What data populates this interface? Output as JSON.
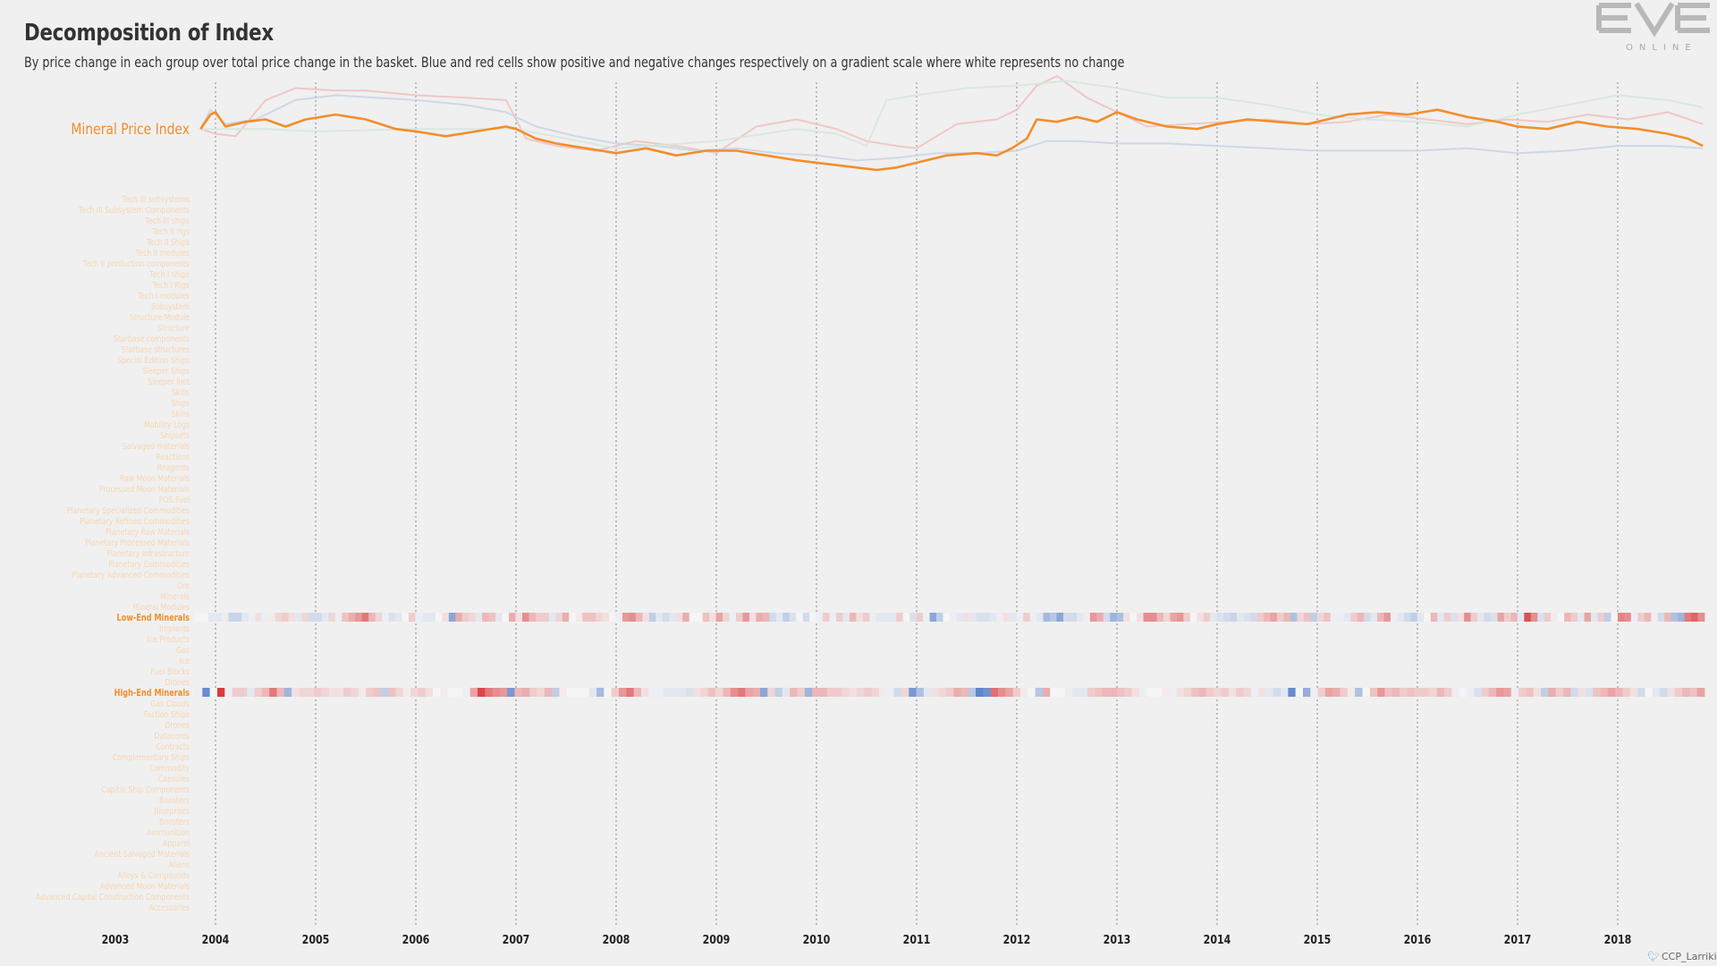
{
  "title": "Decomposition of Index",
  "subtitle": "By price change in each group over total price change in the basket. Blue and red cells show positive and negative changes respectively on a gradient scale where white represents no change",
  "logo": {
    "text": "EVE",
    "sub": "ONLINE"
  },
  "credit": "CCP_Larrikin",
  "colors": {
    "background": "#f0f0f0",
    "accent": "#f28e2b",
    "faded_label": "#f6d6b4",
    "positive": "#4472c4",
    "negative": "#d62728",
    "grid": "#888888"
  },
  "chart_data": {
    "type": "heatmap",
    "title": "Decomposition of Index",
    "x_axis": {
      "ticks": [
        "2003",
        "2004",
        "2005",
        "2006",
        "2007",
        "2008",
        "2009",
        "2010",
        "2011",
        "2012",
        "2013",
        "2014",
        "2015",
        "2016",
        "2017",
        "2018"
      ],
      "range": [
        2003,
        2018.95
      ]
    },
    "line_panel": {
      "type": "line",
      "highlighted_series": "Mineral Price Index",
      "series": [
        {
          "name": "Mineral Price Index",
          "color": "#f28e2b",
          "x": [
            2003.85,
            2003.95,
            2004.0,
            2004.1,
            2004.3,
            2004.5,
            2004.7,
            2004.9,
            2005.2,
            2005.5,
            2005.8,
            2006.0,
            2006.3,
            2006.6,
            2006.9,
            2007.0,
            2007.2,
            2007.4,
            2007.7,
            2008.0,
            2008.3,
            2008.6,
            2008.9,
            2009.2,
            2009.5,
            2009.8,
            2010.0,
            2010.2,
            2010.4,
            2010.6,
            2010.8,
            2011.0,
            2011.3,
            2011.6,
            2011.8,
            2011.95,
            2012.1,
            2012.2,
            2012.4,
            2012.6,
            2012.8,
            2013.0,
            2013.2,
            2013.5,
            2013.8,
            2014.0,
            2014.3,
            2014.6,
            2014.9,
            2015.1,
            2015.3,
            2015.6,
            2015.9,
            2016.2,
            2016.5,
            2016.8,
            2017.0,
            2017.3,
            2017.6,
            2017.9,
            2018.2,
            2018.5,
            2018.7,
            2018.85
          ],
          "values": [
            100,
            106,
            107,
            101,
            103,
            104,
            101,
            104,
            106,
            104,
            100,
            99,
            97,
            99,
            101,
            100,
            96,
            94,
            92,
            90,
            92,
            89,
            91,
            91,
            89,
            87,
            86,
            85,
            84,
            83,
            84,
            86,
            89,
            90,
            89,
            92,
            96,
            104,
            103,
            105,
            103,
            107,
            104,
            101,
            100,
            102,
            104,
            103,
            102,
            104,
            106,
            107,
            106,
            108,
            105,
            103,
            101,
            100,
            103,
            101,
            100,
            98,
            96,
            93
          ]
        },
        {
          "name": "Low-End Minerals",
          "color": "#f0c0c0",
          "x": [
            2003.85,
            2004.0,
            2004.2,
            2004.5,
            2004.8,
            2005.2,
            2005.5,
            2006.0,
            2006.5,
            2006.9,
            2007.1,
            2007.4,
            2007.8,
            2008.2,
            2008.6,
            2009.0,
            2009.4,
            2009.8,
            2010.2,
            2010.5,
            2010.8,
            2011.0,
            2011.4,
            2011.8,
            2012.0,
            2012.2,
            2012.4,
            2012.7,
            2013.0,
            2013.3,
            2013.7,
            2014.1,
            2014.5,
            2014.9,
            2015.3,
            2015.7,
            2016.1,
            2016.5,
            2016.9,
            2017.3,
            2017.7,
            2018.1,
            2018.5,
            2018.85
          ],
          "values": [
            100,
            98,
            97,
            112,
            117,
            116,
            116,
            114,
            113,
            112,
            96,
            93,
            91,
            95,
            93,
            90,
            101,
            104,
            100,
            95,
            93,
            92,
            102,
            104,
            108,
            118,
            122,
            113,
            107,
            101,
            102,
            103,
            104,
            102,
            103,
            106,
            104,
            102,
            104,
            103,
            106,
            104,
            107,
            102
          ]
        },
        {
          "name": "High-End Minerals",
          "color": "#c8d4e4",
          "x": [
            2003.85,
            2003.95,
            2004.1,
            2004.4,
            2004.8,
            2005.2,
            2005.6,
            2006.0,
            2006.5,
            2006.9,
            2007.2,
            2007.6,
            2008.0,
            2008.4,
            2008.8,
            2009.2,
            2009.6,
            2010.0,
            2010.4,
            2010.8,
            2011.2,
            2011.6,
            2012.0,
            2012.3,
            2012.6,
            2013.0,
            2013.5,
            2014.0,
            2014.5,
            2015.0,
            2015.5,
            2016.0,
            2016.5,
            2017.0,
            2017.5,
            2018.0,
            2018.5,
            2018.85
          ],
          "values": [
            100,
            108,
            102,
            104,
            112,
            114,
            113,
            112,
            110,
            107,
            101,
            97,
            94,
            93,
            91,
            92,
            90,
            89,
            87,
            88,
            90,
            90,
            91,
            95,
            95,
            94,
            94,
            93,
            92,
            91,
            91,
            91,
            92,
            90,
            91,
            93,
            93,
            92
          ]
        },
        {
          "name": "",
          "color": "#d6e6dc",
          "x": [
            2003.85,
            2004.5,
            2005.0,
            2006.0,
            2007.0,
            2008.0,
            2009.0,
            2009.8,
            2010.2,
            2010.5,
            2010.7,
            2011.0,
            2011.5,
            2012.0,
            2012.5,
            2013.0,
            2013.5,
            2014.0,
            2014.5,
            2015.0,
            2015.5,
            2016.0,
            2016.5,
            2017.0,
            2017.5,
            2018.0,
            2018.5,
            2018.85
          ],
          "values": [
            100,
            100,
            99,
            100,
            100,
            92,
            95,
            100,
            98,
            93,
            112,
            114,
            117,
            118,
            120,
            117,
            113,
            113,
            110,
            106,
            104,
            103,
            101,
            106,
            110,
            114,
            112,
            109
          ]
        }
      ]
    },
    "heatmap_rows": [
      "Tech III subsystems",
      "Tech III Subsystem Components",
      "Tech III ships",
      "Tech II rigs",
      "Tech II Ships",
      "Tech II modules",
      "Tech II production components",
      "Tech I ships",
      "Tech I Rigs",
      "Tech I modules",
      "Subsystem",
      "Structure Module",
      "Structure",
      "Starbase components",
      "Starbase structures",
      "Special Edition Ships",
      "Sleeper Ships",
      "Sleeper loot",
      "Skills",
      "Ships",
      "Skins",
      "Mobility Logs",
      "Shipsets",
      "Salvaged materials",
      "Reactions",
      "Reagents",
      "Raw Moon Materials",
      "Processed Moon Materials",
      "POS Fuel",
      "Planetary Specialized Commodities",
      "Planetary Refined Commodities",
      "Planetary Raw Materials",
      "Planetary Processed Materials",
      "Planetary Infrastructure",
      "Planetary Commodities",
      "Planetary Advanced Commodities",
      "Ore",
      "Minerals",
      "Mineral Modules",
      "Low-End Minerals",
      "Implants",
      "Ice Products",
      "Gas",
      "Ice",
      "Fuel Blocks",
      "Drones",
      "High-End Minerals",
      "Gas Clouds",
      "Faction Ships",
      "Drones",
      "Datacores",
      "Contracts",
      "Complementary Ships",
      "Commodity",
      "Capsules",
      "Capital Ship Components",
      "Boosters",
      "Blueprints",
      "Boosters",
      "Ammunition",
      "Apparel",
      "Ancient Salvaged Materials",
      "Aliens",
      "Alloys & Compounds",
      "Advanced Moon Materials",
      "Advanced Capital Construction Components",
      "Accessories"
    ],
    "highlighted_rows": {
      "Low-End Minerals": {
        "values": [
          0,
          0,
          0.1,
          0.1,
          -0.05,
          0.25,
          0.25,
          0.1,
          0.05,
          -0.1,
          0.05,
          -0.05,
          -0.15,
          -0.2,
          -0.1,
          0.1,
          -0.15,
          0.2,
          0.2,
          0.1,
          -0.15,
          0.05,
          -0.25,
          -0.35,
          -0.45,
          -0.6,
          -0.3,
          -0.15,
          0.05,
          0.15,
          0.1,
          0,
          -0.2,
          0.05,
          0.1,
          0.1,
          0,
          -0.1,
          0.6,
          -0.35,
          -0.2,
          -0.15,
          0.1,
          -0.3,
          -0.25,
          0.1,
          0,
          -0.35,
          -0.1,
          -0.5,
          -0.3,
          -0.2,
          -0.2,
          0.1,
          -0.15,
          -0.35,
          0,
          -0.05,
          -0.25,
          -0.25,
          -0.15,
          -0.1,
          0,
          0.05,
          -0.45,
          -0.5,
          -0.3,
          -0.1,
          0.3,
          0.1,
          0.2,
          0.1,
          -0.1,
          -0.35,
          0,
          0,
          -0.25,
          -0.1,
          -0.4,
          -0.15,
          0.05,
          -0.2,
          -0.45,
          -0.1,
          -0.35,
          -0.3,
          0.2,
          0.1,
          0.3,
          0.15,
          0,
          0.2,
          0,
          0.05,
          -0.2,
          0.05,
          -0.2,
          0.1,
          -0.3,
          -0.1,
          -0.2,
          0.05,
          0.1,
          0.1,
          0.1,
          -0.2,
          0,
          0.15,
          -0.2,
          0.05,
          0.6,
          0.3,
          0,
          0.05,
          0.1,
          -0.1,
          0.1,
          0.15,
          0.15,
          0.1,
          0.05,
          -0.1,
          0.1,
          0.05,
          -0.2,
          0.05,
          0.1,
          0.45,
          0.35,
          0.6,
          0.2,
          0.2,
          0.1,
          0.05,
          -0.45,
          -0.35,
          0.2,
          0.5,
          0.4,
          -0.1,
          0,
          -0.1,
          -0.5,
          -0.5,
          -0.3,
          -0.15,
          -0.4,
          -0.45,
          -0.2,
          0,
          -0.1,
          -0.2,
          0.1,
          0.15,
          0.2,
          0.25,
          0.1,
          0.15,
          0.2,
          -0.2,
          -0.3,
          -0.4,
          -0.2,
          -0.3,
          0.4,
          -0.15,
          -0.25,
          0.3,
          -0.15,
          -0.25,
          0.05,
          0.05,
          0.1,
          -0.2,
          -0.3,
          0.2,
          0.1,
          -0.3,
          -0.45,
          0.05,
          0.1,
          0.2,
          0.3,
          0.1,
          0,
          -0.3,
          0.1,
          -0.2,
          0.15,
          -0.1,
          -0.5,
          -0.2,
          0.1,
          0.2,
          0.15,
          -0.4,
          -0.2,
          -0.3,
          0.1,
          -0.8,
          -0.5,
          0.15,
          -0.2,
          -0.05,
          0,
          -0.3,
          -0.2,
          0.1,
          -0.4,
          0.1,
          -0.2,
          0.3,
          0,
          -0.55,
          -0.5,
          0.05,
          -0.2,
          -0.3,
          0.05,
          0.2,
          -0.3,
          0.4,
          0.5,
          -0.6,
          -0.7,
          -0.5
        ]
      },
      "High-End Minerals": {
        "values": [
          0.05,
          0.8,
          0,
          -0.9,
          0.05,
          -0.2,
          -0.2,
          0.1,
          -0.2,
          -0.3,
          -0.6,
          -0.3,
          0.5,
          -0.1,
          -0.15,
          -0.15,
          -0.2,
          -0.15,
          -0.1,
          -0.1,
          -0.2,
          -0.15,
          -0.05,
          -0.2,
          -0.25,
          0.3,
          -0.25,
          -0.15,
          -0.05,
          -0.15,
          -0.2,
          -0.1,
          0,
          -0.05,
          0,
          0,
          0.05,
          -0.4,
          -0.85,
          -0.6,
          -0.5,
          -0.45,
          0.7,
          -0.3,
          -0.35,
          -0.2,
          -0.15,
          -0.3,
          0.3,
          -0.05,
          0,
          0,
          0,
          0.1,
          0.45,
          0,
          -0.2,
          -0.45,
          -0.6,
          -0.3,
          -0.1,
          0.05,
          0.05,
          0.1,
          0.1,
          0.1,
          0.15,
          -0.1,
          -0.15,
          -0.25,
          -0.15,
          -0.3,
          -0.5,
          -0.6,
          -0.4,
          -0.35,
          0.6,
          -0.15,
          0.3,
          0.1,
          -0.3,
          -0.2,
          0.5,
          -0.3,
          -0.3,
          -0.2,
          -0.2,
          -0.15,
          -0.1,
          -0.15,
          -0.2,
          -0.15,
          -0.05,
          0.05,
          0.2,
          -0.15,
          0.7,
          0.4,
          0.1,
          -0.1,
          -0.15,
          -0.2,
          -0.35,
          -0.3,
          0.35,
          0.85,
          0.75,
          -0.65,
          -0.5,
          -0.4,
          -0.2,
          -0.05,
          0,
          0.35,
          -0.35,
          0,
          0,
          0.05,
          0.1,
          0.1,
          -0.2,
          -0.25,
          -0.3,
          -0.3,
          -0.25,
          -0.2,
          -0.1,
          0.05,
          0,
          0,
          -0.05,
          0.05,
          -0.1,
          -0.15,
          -0.25,
          -0.3,
          -0.2,
          -0.15,
          -0.2,
          -0.1,
          -0.2,
          -0.15,
          0.05,
          -0.1,
          0.1,
          0.2,
          0.1,
          0.8,
          0,
          0.55,
          0.05,
          -0.2,
          -0.4,
          -0.35,
          -0.2,
          -0.05,
          0.4,
          0,
          -0.25,
          -0.45,
          -0.25,
          -0.3,
          -0.2,
          -0.25,
          -0.2,
          -0.2,
          -0.15,
          -0.3,
          -0.2,
          0.05,
          0,
          0.05,
          0.15,
          -0.2,
          -0.3,
          -0.45,
          -0.4,
          0.05,
          -0.2,
          -0.25,
          -0.1,
          0.3,
          -0.35,
          -0.2,
          -0.3,
          0.2,
          -0.1,
          0.15,
          -0.25,
          -0.3,
          -0.4,
          -0.3,
          -0.2,
          -0.1,
          0.2,
          0,
          0.1,
          0.2,
          -0.1,
          -0.2,
          -0.3,
          -0.25,
          -0.4
        ]
      }
    },
    "grid": true,
    "legend": "none"
  }
}
